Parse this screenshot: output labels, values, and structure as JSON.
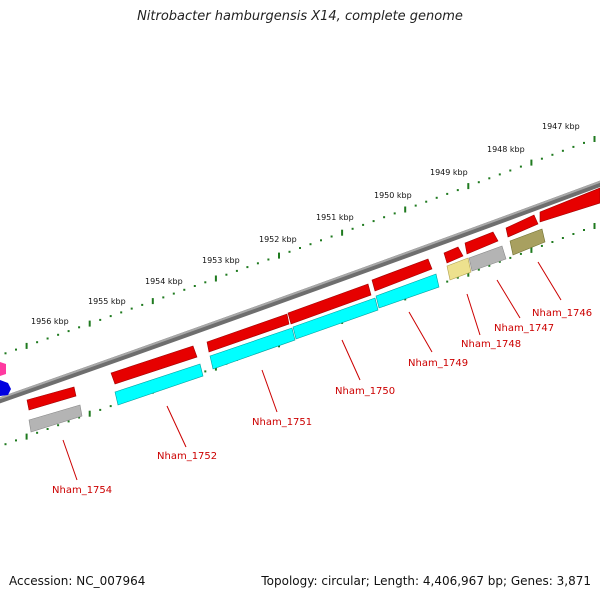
{
  "title": "Nitrobacter hamburgensis X14, complete genome",
  "footer": {
    "accession": "Accession: NC_007964",
    "summary": "Topology: circular; Length: 4,406,967 bp; Genes: 3,871"
  },
  "colors": {
    "backbone": "#808080",
    "cds_forward": "#e60000",
    "cds_cyan": "#00ffff",
    "cds_gray": "#b4b4b4",
    "cds_yellow": "#ede18e",
    "cds_olive": "#a8a060",
    "tick_dot": "#1f7a1f",
    "label": "#cc0000"
  },
  "scale_labels": [
    "1947 kbp",
    "1948 kbp",
    "1949 kbp",
    "1950 kbp",
    "1951 kbp",
    "1952 kbp",
    "1953 kbp",
    "1954 kbp",
    "1955 kbp",
    "1956 kbp"
  ],
  "genes": [
    "Nham_1746",
    "Nham_1747",
    "Nham_1748",
    "Nham_1749",
    "Nham_1750",
    "Nham_1751",
    "Nham_1752",
    "Nham_1754"
  ]
}
